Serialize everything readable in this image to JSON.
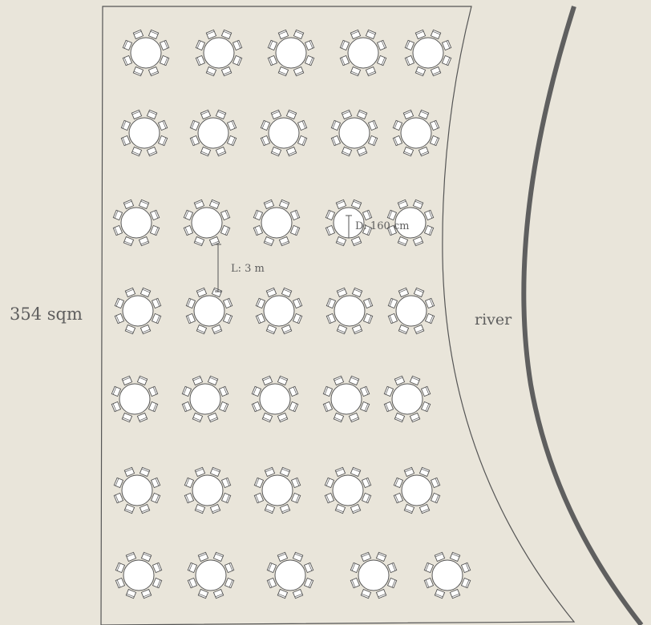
{
  "floor_plan": {
    "area_label": "354 sqm",
    "river_label": "river",
    "spacing_annotation": "L: 3 m",
    "table_diameter_annotation": "D: 160 cm",
    "table_rows": [
      5,
      5,
      5,
      5,
      5,
      5,
      5
    ],
    "chairs_per_table": 8
  },
  "colors": {
    "background": "#e9e5da",
    "outline": "#555555",
    "table_fill": "#ffffff",
    "river_bank": "#5f5f5f",
    "label_text": "#5e5e5e"
  }
}
